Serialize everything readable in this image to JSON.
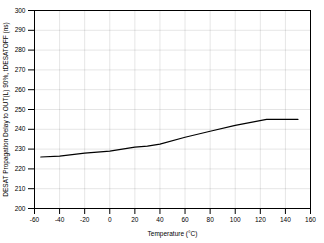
{
  "chart_data": {
    "type": "line",
    "xlabel": "Temperature (°C)",
    "ylabel": "DESAT Propagation Delay to OUT(L) 90%, tDESATOFF (ns)",
    "x": [
      -55,
      -40,
      -20,
      0,
      20,
      30,
      40,
      60,
      80,
      100,
      125,
      150
    ],
    "values": [
      226,
      226.5,
      228,
      229,
      231,
      231.5,
      232.5,
      236,
      239,
      242,
      245,
      245
    ],
    "color": "#000000",
    "xlim": [
      -60,
      160
    ],
    "ylim": [
      200,
      300
    ],
    "xticks": [
      -60,
      -40,
      -20,
      0,
      20,
      40,
      60,
      80,
      100,
      120,
      140,
      160
    ],
    "yticks": [
      200,
      210,
      220,
      230,
      240,
      250,
      260,
      270,
      280,
      290,
      300
    ],
    "grid": true
  }
}
